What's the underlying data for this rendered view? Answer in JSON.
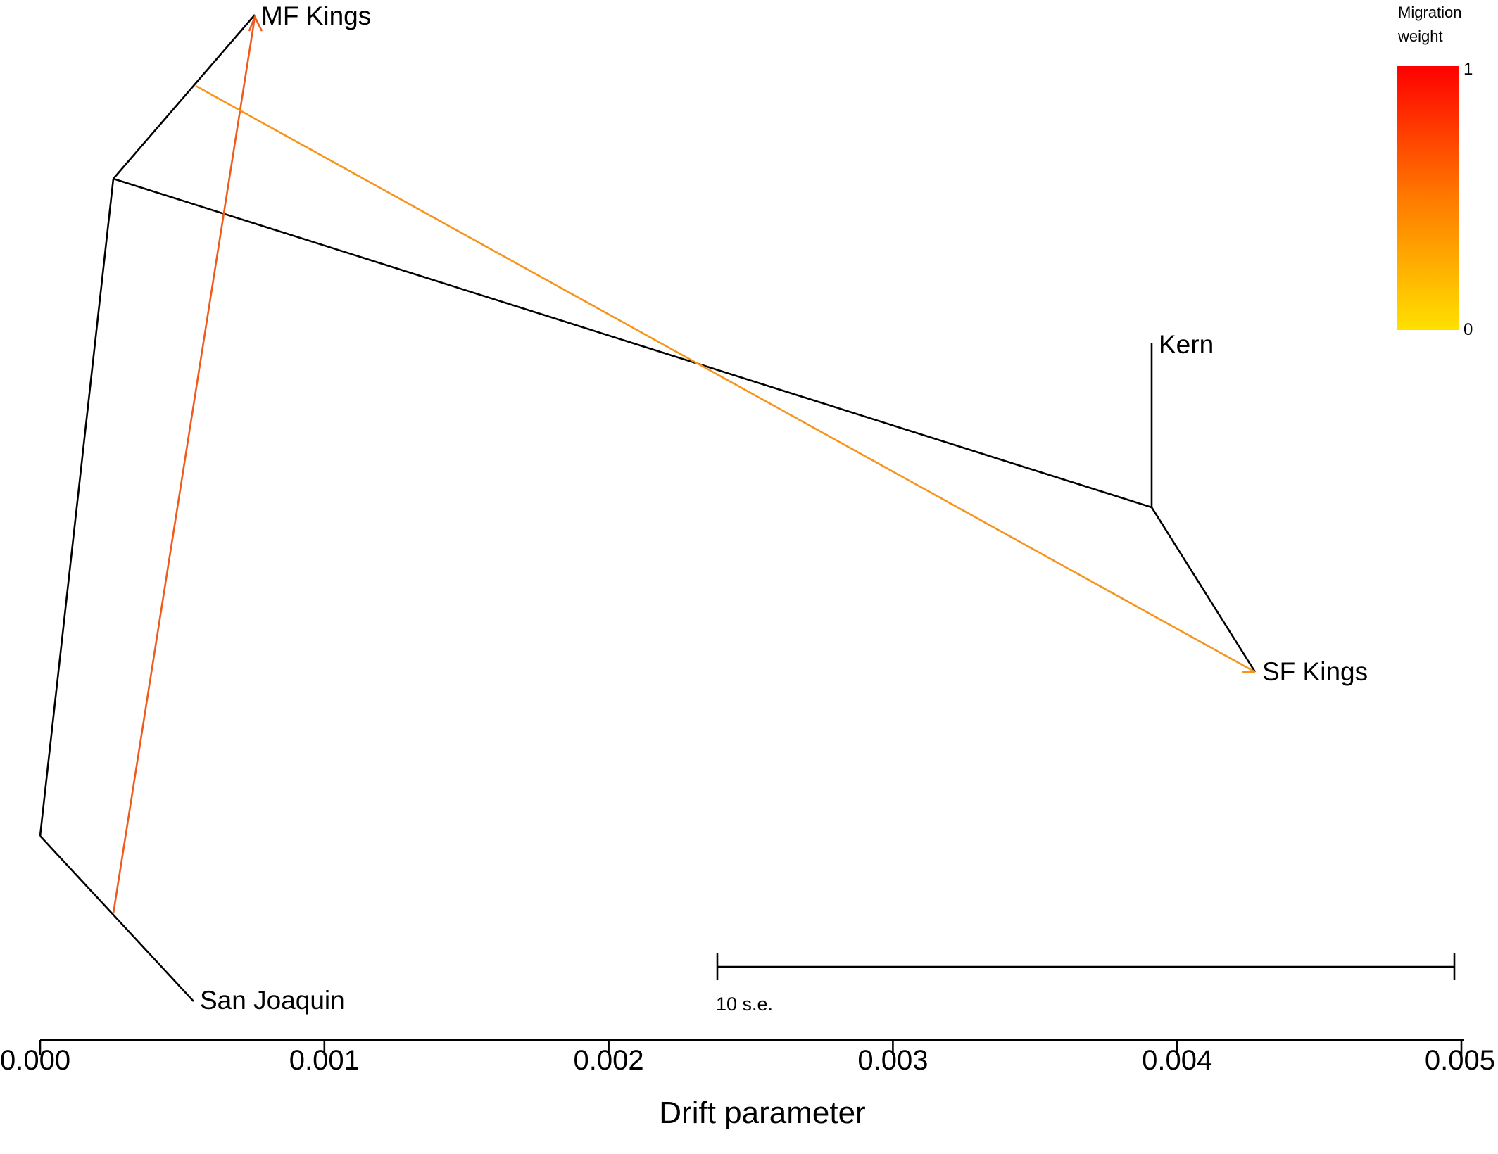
{
  "chart_data": {
    "type": "tree",
    "xlabel": "Drift parameter",
    "xlim": [
      0,
      0.005
    ],
    "ticks": [
      {
        "value": 0.0,
        "label": "0.000"
      },
      {
        "value": 0.001,
        "label": "0.001"
      },
      {
        "value": 0.002,
        "label": "0.002"
      },
      {
        "value": 0.003,
        "label": "0.003"
      },
      {
        "value": 0.004,
        "label": "0.004"
      },
      {
        "value": 0.005,
        "label": "0.005"
      }
    ],
    "tips": [
      {
        "name": "MF Kings",
        "drift": 0.00075
      },
      {
        "name": "Kern",
        "drift": 0.0039
      },
      {
        "name": "SF Kings",
        "drift": 0.00428
      },
      {
        "name": "San Joaquin",
        "drift": 0.00054
      }
    ],
    "migration_edges": [
      {
        "from_branch": "San Joaquin",
        "to": "MF Kings",
        "weight": 0.85,
        "color": "#f05a1a"
      },
      {
        "from_branch": "MF Kings",
        "to": "SF Kings",
        "weight": 0.55,
        "color": "#f7941d"
      }
    ],
    "scale_bar": {
      "label": "10 s.e.",
      "from": 0.00238,
      "to": 0.00497
    },
    "legend": {
      "title_line1": "Migration",
      "title_line2": "weight",
      "max_label": "1",
      "min_label": "0",
      "color_max": "#ff0000",
      "color_mid": "#ff7a00",
      "color_min": "#ffe000",
      "placement": "top-right"
    },
    "branch_color": "#000000"
  }
}
